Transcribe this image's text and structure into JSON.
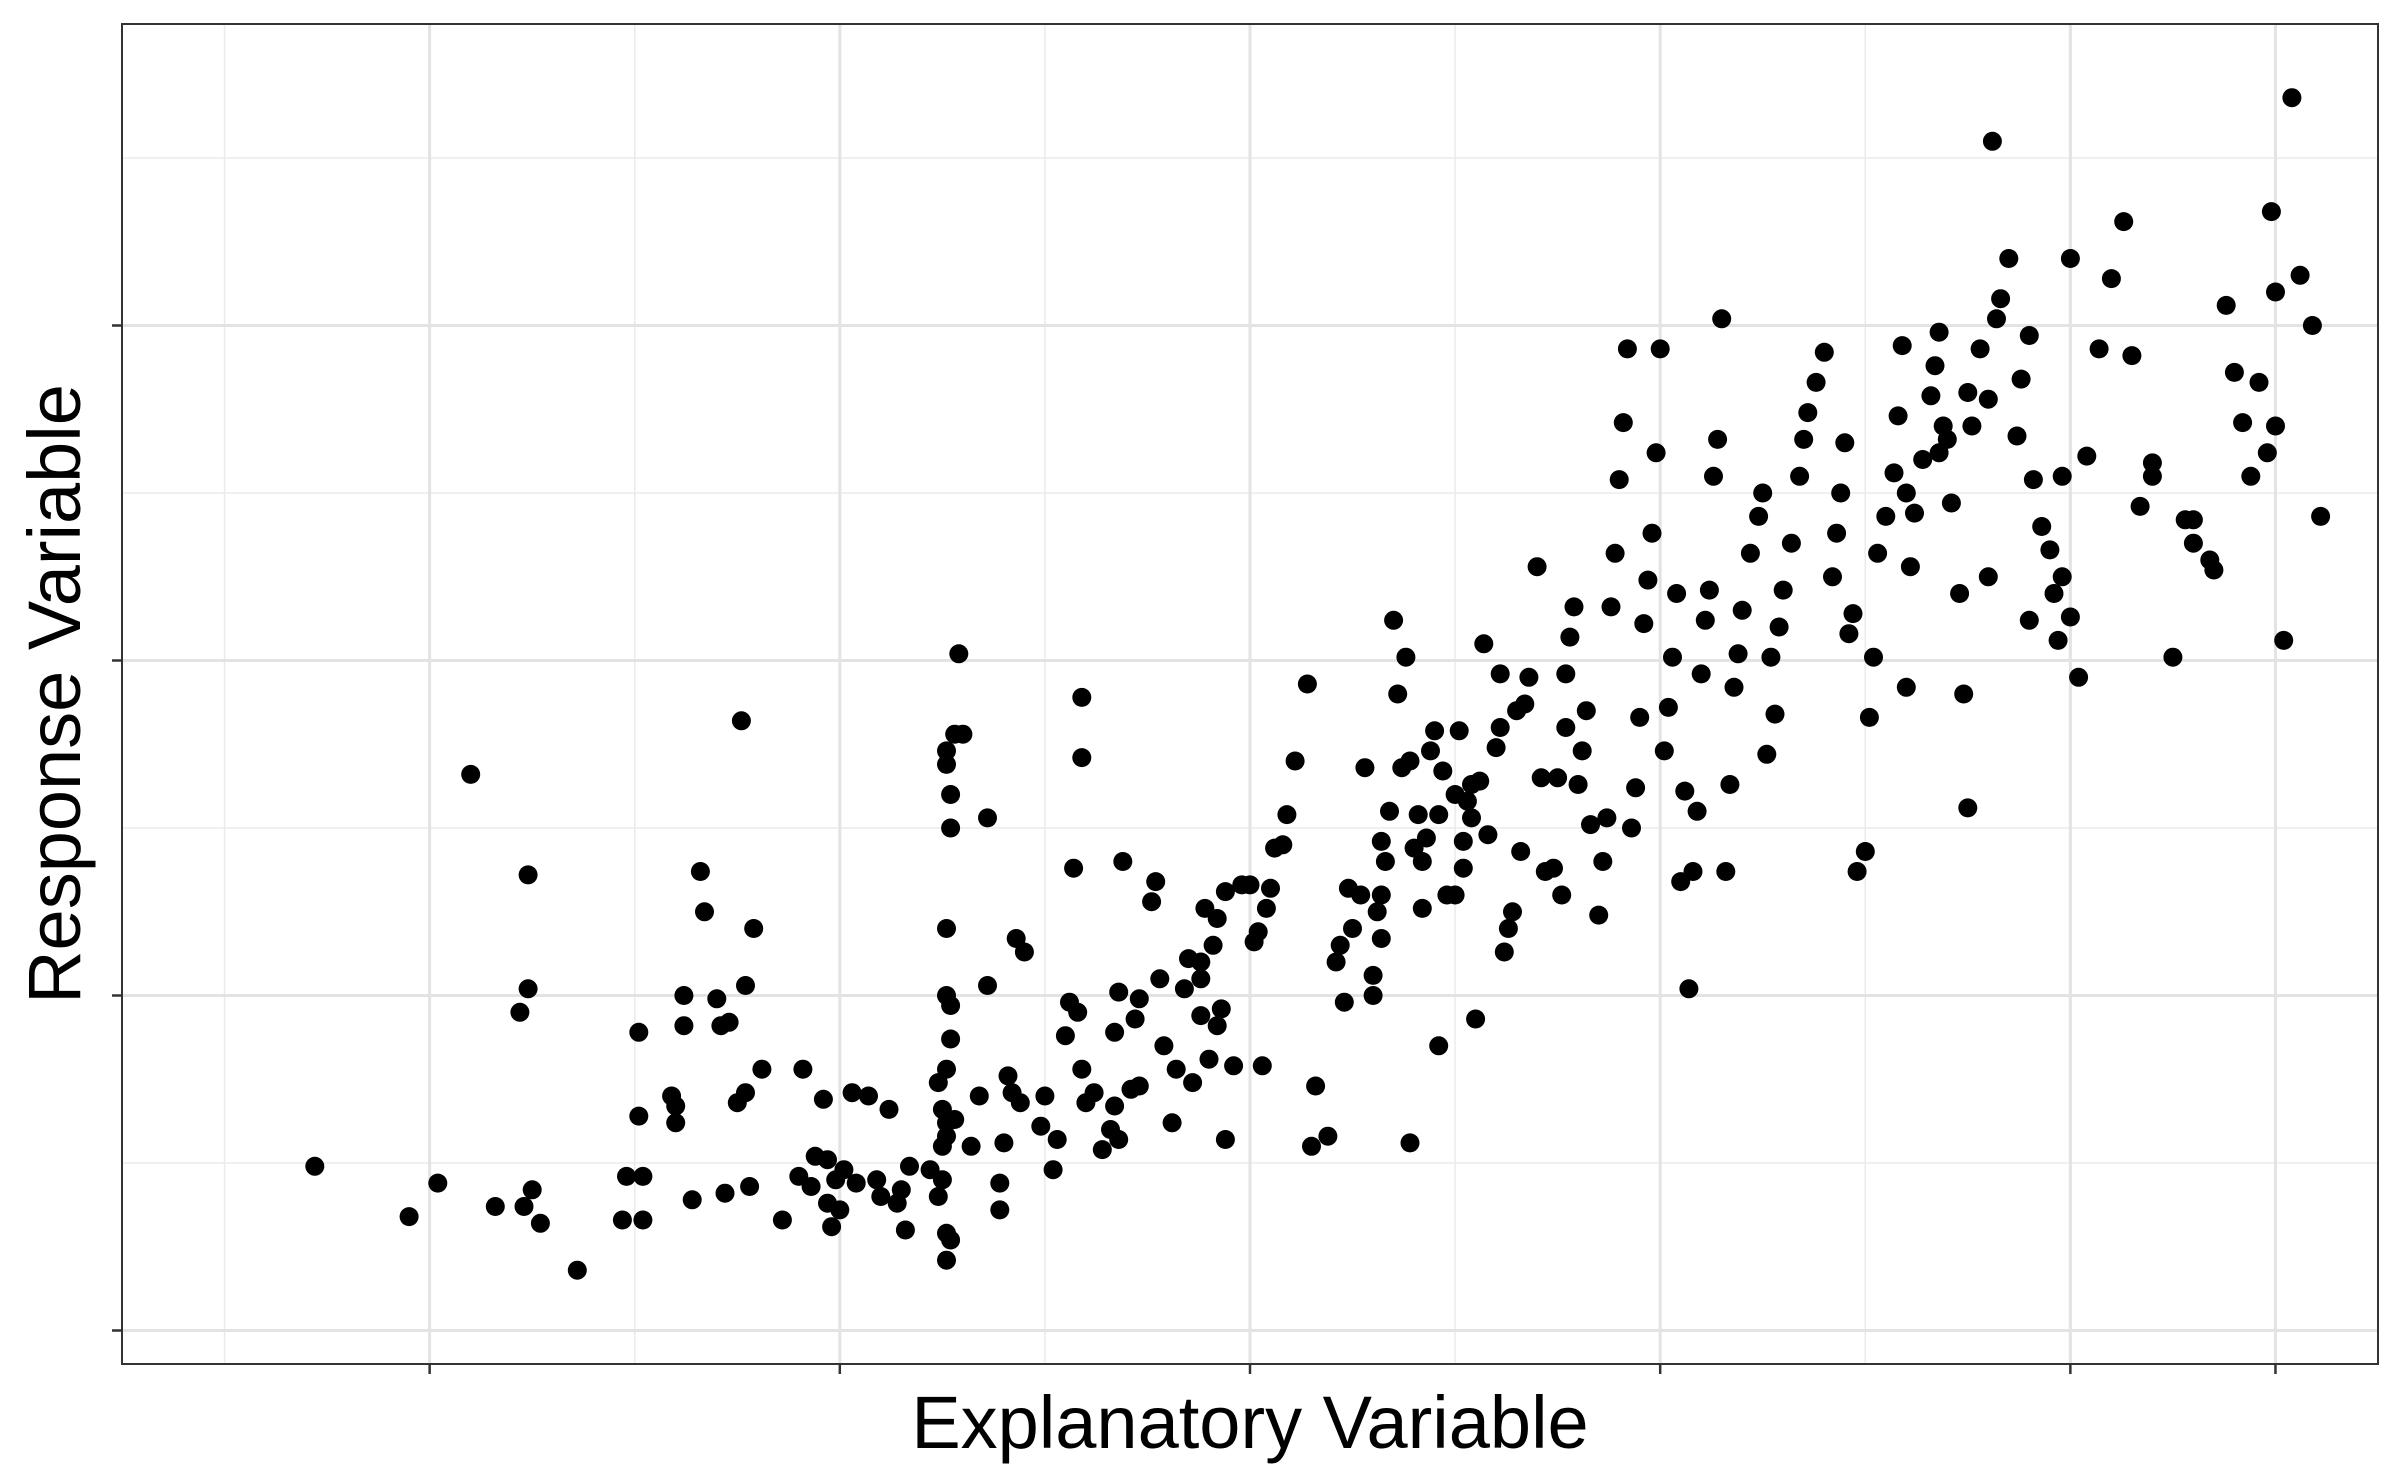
{
  "chart_data": {
    "type": "scatter",
    "title": "",
    "xlabel": "Explanatory Variable",
    "ylabel": "Response Variable",
    "xlim": [
      -0.25,
      5.25
    ],
    "ylim": [
      -0.1,
      3.9
    ],
    "x_ticks": [
      0.5,
      1.5,
      2.5,
      3.5,
      4.5,
      5.0
    ],
    "x_ticks_minor": [
      0,
      1,
      2,
      3,
      4,
      5
    ],
    "y_ticks": [
      0,
      1,
      2,
      3
    ],
    "y_ticks_minor": [
      0.5,
      1.5,
      2.5,
      3.5
    ],
    "tick_labels_shown": false,
    "grid": true,
    "legend": "none",
    "point_color": "#000000",
    "points": [
      [
        0.22,
        0.49
      ],
      [
        0.45,
        0.34
      ],
      [
        0.52,
        0.44
      ],
      [
        0.6,
        1.66
      ],
      [
        0.66,
        0.37
      ],
      [
        0.72,
        0.95
      ],
      [
        0.73,
        0.37
      ],
      [
        0.74,
        1.02
      ],
      [
        0.74,
        1.36
      ],
      [
        0.75,
        0.42
      ],
      [
        0.77,
        0.32
      ],
      [
        0.86,
        0.18
      ],
      [
        0.97,
        0.33
      ],
      [
        0.98,
        0.46
      ],
      [
        1.01,
        0.64
      ],
      [
        1.01,
        0.89
      ],
      [
        1.02,
        0.33
      ],
      [
        1.02,
        0.46
      ],
      [
        1.09,
        0.7
      ],
      [
        1.1,
        0.62
      ],
      [
        1.1,
        0.67
      ],
      [
        1.12,
        0.91
      ],
      [
        1.12,
        1.0
      ],
      [
        1.14,
        0.39
      ],
      [
        1.16,
        1.37
      ],
      [
        1.17,
        1.25
      ],
      [
        1.2,
        0.99
      ],
      [
        1.21,
        0.91
      ],
      [
        1.22,
        0.41
      ],
      [
        1.23,
        0.92
      ],
      [
        1.25,
        0.68
      ],
      [
        1.27,
        1.03
      ],
      [
        1.27,
        0.71
      ],
      [
        1.28,
        0.43
      ],
      [
        1.26,
        1.82
      ],
      [
        1.29,
        1.2
      ],
      [
        1.31,
        0.78
      ],
      [
        1.36,
        0.33
      ],
      [
        1.4,
        0.46
      ],
      [
        1.41,
        0.78
      ],
      [
        1.43,
        0.43
      ],
      [
        1.44,
        0.52
      ],
      [
        1.46,
        0.69
      ],
      [
        1.47,
        0.51
      ],
      [
        1.47,
        0.38
      ],
      [
        1.48,
        0.31
      ],
      [
        1.49,
        0.45
      ],
      [
        1.5,
        0.36
      ],
      [
        1.51,
        0.48
      ],
      [
        1.53,
        0.71
      ],
      [
        1.54,
        0.44
      ],
      [
        1.57,
        0.7
      ],
      [
        1.59,
        0.45
      ],
      [
        1.6,
        0.4
      ],
      [
        1.62,
        0.66
      ],
      [
        1.64,
        0.38
      ],
      [
        1.65,
        0.42
      ],
      [
        1.67,
        0.49
      ],
      [
        1.66,
        0.3
      ],
      [
        1.72,
        0.48
      ],
      [
        1.74,
        0.4
      ],
      [
        1.74,
        0.74
      ],
      [
        1.75,
        0.66
      ],
      [
        1.75,
        0.55
      ],
      [
        1.75,
        0.45
      ],
      [
        1.76,
        0.58
      ],
      [
        1.76,
        0.62
      ],
      [
        1.76,
        0.78
      ],
      [
        1.77,
        0.87
      ],
      [
        1.77,
        0.97
      ],
      [
        1.76,
        1.0
      ],
      [
        1.76,
        1.2
      ],
      [
        1.77,
        1.5
      ],
      [
        1.77,
        1.6
      ],
      [
        1.76,
        1.69
      ],
      [
        1.76,
        1.73
      ],
      [
        1.78,
        1.78
      ],
      [
        1.79,
        2.02
      ],
      [
        1.77,
        0.27
      ],
      [
        1.76,
        0.21
      ],
      [
        1.76,
        0.29
      ],
      [
        1.78,
        0.63
      ],
      [
        1.8,
        1.78
      ],
      [
        1.82,
        0.55
      ],
      [
        1.84,
        0.7
      ],
      [
        1.86,
        1.53
      ],
      [
        1.86,
        1.03
      ],
      [
        1.89,
        0.44
      ],
      [
        1.89,
        0.36
      ],
      [
        1.9,
        0.56
      ],
      [
        1.91,
        0.76
      ],
      [
        1.92,
        0.71
      ],
      [
        1.93,
        1.17
      ],
      [
        1.94,
        0.68
      ],
      [
        1.95,
        1.13
      ],
      [
        1.99,
        0.61
      ],
      [
        2.0,
        0.7
      ],
      [
        2.02,
        0.48
      ],
      [
        2.03,
        0.57
      ],
      [
        2.05,
        0.88
      ],
      [
        2.06,
        0.98
      ],
      [
        2.07,
        1.38
      ],
      [
        2.08,
        0.95
      ],
      [
        2.09,
        0.78
      ],
      [
        2.09,
        1.71
      ],
      [
        2.09,
        1.89
      ],
      [
        2.1,
        0.68
      ],
      [
        2.12,
        0.71
      ],
      [
        2.14,
        0.54
      ],
      [
        2.16,
        0.6
      ],
      [
        2.17,
        0.67
      ],
      [
        2.17,
        0.89
      ],
      [
        2.18,
        0.57
      ],
      [
        2.18,
        1.01
      ],
      [
        2.19,
        1.4
      ],
      [
        2.21,
        0.72
      ],
      [
        2.22,
        0.93
      ],
      [
        2.23,
        0.73
      ],
      [
        2.23,
        0.99
      ],
      [
        2.26,
        1.28
      ],
      [
        2.27,
        1.34
      ],
      [
        2.28,
        1.05
      ],
      [
        2.29,
        0.85
      ],
      [
        2.31,
        0.62
      ],
      [
        2.32,
        0.78
      ],
      [
        2.34,
        1.02
      ],
      [
        2.35,
        1.11
      ],
      [
        2.36,
        0.74
      ],
      [
        2.38,
        0.94
      ],
      [
        2.38,
        1.05
      ],
      [
        2.38,
        1.1
      ],
      [
        2.39,
        1.26
      ],
      [
        2.4,
        0.81
      ],
      [
        2.41,
        1.15
      ],
      [
        2.42,
        0.91
      ],
      [
        2.42,
        1.23
      ],
      [
        2.43,
        0.96
      ],
      [
        2.44,
        1.31
      ],
      [
        2.44,
        0.57
      ],
      [
        2.46,
        0.79
      ],
      [
        2.48,
        1.33
      ],
      [
        2.5,
        1.33
      ],
      [
        2.51,
        1.16
      ],
      [
        2.52,
        1.19
      ],
      [
        2.53,
        0.79
      ],
      [
        2.54,
        1.26
      ],
      [
        2.55,
        1.32
      ],
      [
        2.56,
        1.44
      ],
      [
        2.58,
        1.45
      ],
      [
        2.59,
        1.54
      ],
      [
        2.61,
        1.7
      ],
      [
        2.64,
        1.93
      ],
      [
        2.65,
        0.55
      ],
      [
        2.66,
        0.73
      ],
      [
        2.69,
        0.58
      ],
      [
        2.71,
        1.1
      ],
      [
        2.72,
        1.15
      ],
      [
        2.73,
        0.98
      ],
      [
        2.74,
        1.32
      ],
      [
        2.75,
        1.2
      ],
      [
        2.77,
        1.3
      ],
      [
        2.78,
        1.68
      ],
      [
        2.8,
        1.0
      ],
      [
        2.8,
        1.06
      ],
      [
        2.81,
        1.25
      ],
      [
        2.82,
        1.46
      ],
      [
        2.82,
        1.17
      ],
      [
        2.82,
        1.3
      ],
      [
        2.83,
        1.4
      ],
      [
        2.84,
        1.55
      ],
      [
        2.85,
        2.12
      ],
      [
        2.86,
        1.9
      ],
      [
        2.87,
        1.68
      ],
      [
        2.88,
        2.01
      ],
      [
        2.89,
        0.56
      ],
      [
        2.89,
        1.7
      ],
      [
        2.9,
        1.44
      ],
      [
        2.91,
        1.54
      ],
      [
        2.92,
        1.26
      ],
      [
        2.92,
        1.4
      ],
      [
        2.93,
        1.47
      ],
      [
        2.94,
        1.73
      ],
      [
        2.95,
        1.79
      ],
      [
        2.96,
        0.85
      ],
      [
        2.96,
        1.54
      ],
      [
        2.97,
        1.67
      ],
      [
        2.98,
        1.3
      ],
      [
        3.0,
        1.3
      ],
      [
        3.0,
        1.6
      ],
      [
        3.01,
        1.79
      ],
      [
        3.02,
        1.46
      ],
      [
        3.02,
        1.38
      ],
      [
        3.03,
        1.58
      ],
      [
        3.04,
        1.53
      ],
      [
        3.04,
        1.63
      ],
      [
        3.05,
        0.93
      ],
      [
        3.06,
        1.64
      ],
      [
        3.07,
        2.05
      ],
      [
        3.08,
        1.48
      ],
      [
        3.1,
        1.74
      ],
      [
        3.11,
        1.8
      ],
      [
        3.11,
        1.96
      ],
      [
        3.12,
        1.13
      ],
      [
        3.13,
        1.2
      ],
      [
        3.14,
        1.25
      ],
      [
        3.15,
        1.85
      ],
      [
        3.16,
        1.43
      ],
      [
        3.17,
        1.87
      ],
      [
        3.18,
        1.95
      ],
      [
        3.2,
        2.28
      ],
      [
        3.21,
        1.65
      ],
      [
        3.22,
        1.37
      ],
      [
        3.24,
        1.38
      ],
      [
        3.25,
        1.65
      ],
      [
        3.26,
        1.3
      ],
      [
        3.27,
        1.8
      ],
      [
        3.27,
        1.96
      ],
      [
        3.28,
        2.07
      ],
      [
        3.29,
        2.16
      ],
      [
        3.3,
        1.63
      ],
      [
        3.31,
        1.73
      ],
      [
        3.32,
        1.85
      ],
      [
        3.33,
        1.51
      ],
      [
        3.35,
        1.24
      ],
      [
        3.36,
        1.4
      ],
      [
        3.37,
        1.53
      ],
      [
        3.38,
        2.16
      ],
      [
        3.39,
        2.32
      ],
      [
        3.4,
        2.54
      ],
      [
        3.41,
        2.71
      ],
      [
        3.42,
        2.93
      ],
      [
        3.43,
        1.5
      ],
      [
        3.44,
        1.62
      ],
      [
        3.45,
        1.83
      ],
      [
        3.46,
        2.11
      ],
      [
        3.47,
        2.24
      ],
      [
        3.48,
        2.38
      ],
      [
        3.49,
        2.62
      ],
      [
        3.5,
        2.93
      ],
      [
        3.51,
        1.73
      ],
      [
        3.52,
        1.86
      ],
      [
        3.53,
        2.01
      ],
      [
        3.54,
        2.2
      ],
      [
        3.55,
        1.34
      ],
      [
        3.56,
        1.61
      ],
      [
        3.57,
        1.02
      ],
      [
        3.58,
        1.37
      ],
      [
        3.59,
        1.55
      ],
      [
        3.6,
        1.96
      ],
      [
        3.61,
        2.12
      ],
      [
        3.62,
        2.21
      ],
      [
        3.63,
        2.55
      ],
      [
        3.64,
        2.66
      ],
      [
        3.65,
        3.02
      ],
      [
        3.66,
        1.37
      ],
      [
        3.67,
        1.63
      ],
      [
        3.68,
        1.92
      ],
      [
        3.69,
        2.02
      ],
      [
        3.7,
        2.15
      ],
      [
        3.72,
        2.32
      ],
      [
        3.74,
        2.43
      ],
      [
        3.75,
        2.5
      ],
      [
        3.76,
        1.72
      ],
      [
        3.77,
        2.01
      ],
      [
        3.78,
        1.84
      ],
      [
        3.79,
        2.1
      ],
      [
        3.8,
        2.21
      ],
      [
        3.82,
        2.35
      ],
      [
        3.84,
        2.55
      ],
      [
        3.85,
        2.66
      ],
      [
        3.86,
        2.74
      ],
      [
        3.88,
        2.83
      ],
      [
        3.9,
        2.92
      ],
      [
        3.92,
        2.25
      ],
      [
        3.93,
        2.38
      ],
      [
        3.94,
        2.5
      ],
      [
        3.95,
        2.65
      ],
      [
        3.96,
        2.08
      ],
      [
        3.97,
        2.14
      ],
      [
        3.98,
        1.37
      ],
      [
        4.0,
        1.43
      ],
      [
        4.01,
        1.83
      ],
      [
        4.02,
        2.01
      ],
      [
        4.03,
        2.32
      ],
      [
        4.05,
        2.43
      ],
      [
        4.07,
        2.56
      ],
      [
        4.08,
        2.73
      ],
      [
        4.09,
        2.94
      ],
      [
        4.1,
        1.92
      ],
      [
        4.11,
        2.28
      ],
      [
        4.12,
        2.44
      ],
      [
        4.14,
        2.6
      ],
      [
        4.16,
        2.79
      ],
      [
        4.17,
        2.88
      ],
      [
        4.18,
        2.98
      ],
      [
        4.19,
        2.7
      ],
      [
        4.2,
        2.66
      ],
      [
        4.21,
        2.47
      ],
      [
        4.23,
        2.2
      ],
      [
        4.24,
        1.9
      ],
      [
        4.25,
        1.56
      ],
      [
        4.26,
        2.7
      ],
      [
        4.28,
        2.93
      ],
      [
        4.3,
        2.78
      ],
      [
        4.31,
        3.55
      ],
      [
        4.32,
        3.02
      ],
      [
        4.33,
        3.08
      ],
      [
        4.35,
        3.2
      ],
      [
        4.37,
        2.67
      ],
      [
        4.38,
        2.84
      ],
      [
        4.4,
        2.97
      ],
      [
        4.41,
        2.54
      ],
      [
        4.43,
        2.4
      ],
      [
        4.45,
        2.33
      ],
      [
        4.46,
        2.2
      ],
      [
        4.47,
        2.06
      ],
      [
        4.48,
        2.25
      ],
      [
        4.5,
        2.13
      ],
      [
        4.52,
        1.95
      ],
      [
        4.54,
        2.61
      ],
      [
        4.57,
        2.93
      ],
      [
        4.6,
        3.14
      ],
      [
        4.63,
        3.31
      ],
      [
        4.65,
        2.91
      ],
      [
        4.67,
        2.46
      ],
      [
        4.7,
        2.59
      ],
      [
        4.75,
        2.01
      ],
      [
        4.78,
        2.42
      ],
      [
        4.8,
        2.35
      ],
      [
        4.84,
        2.3
      ],
      [
        4.88,
        3.06
      ],
      [
        4.9,
        2.86
      ],
      [
        4.92,
        2.71
      ],
      [
        4.94,
        2.55
      ],
      [
        4.96,
        2.83
      ],
      [
        4.98,
        2.62
      ],
      [
        4.99,
        3.34
      ],
      [
        5.0,
        2.7
      ],
      [
        5.02,
        2.06
      ],
      [
        5.04,
        3.68
      ],
      [
        5.06,
        3.15
      ],
      [
        5.09,
        3.0
      ],
      [
        5.11,
        2.43
      ],
      [
        4.4,
        2.12
      ],
      [
        4.7,
        2.55
      ],
      [
        4.3,
        2.25
      ],
      [
        4.18,
        2.62
      ],
      [
        4.1,
        2.5
      ],
      [
        4.25,
        2.8
      ],
      [
        4.48,
        2.55
      ],
      [
        4.8,
        2.42
      ],
      [
        5.0,
        3.1
      ],
      [
        4.85,
        2.27
      ],
      [
        4.5,
        3.2
      ]
    ]
  }
}
